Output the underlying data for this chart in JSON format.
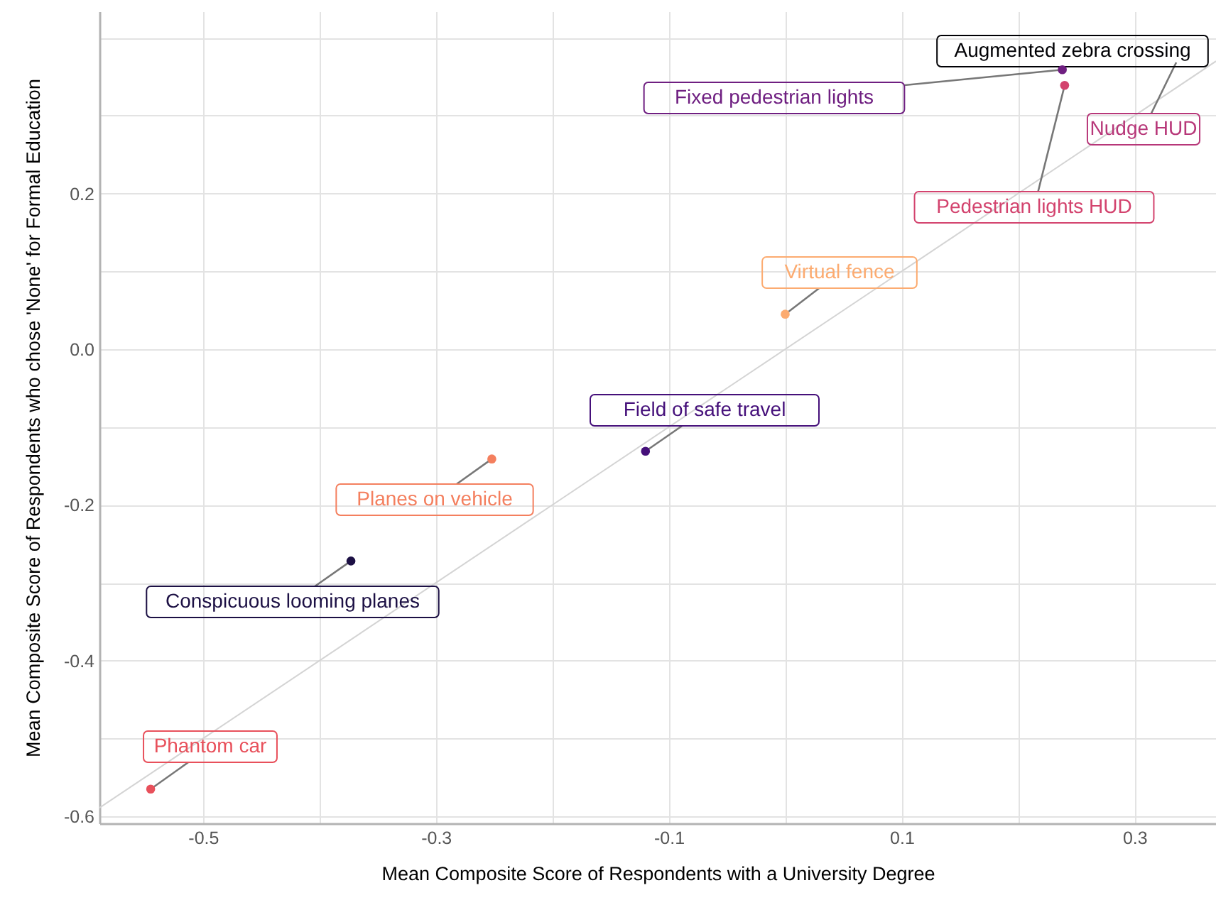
{
  "chart_data": {
    "type": "scatter",
    "xlabel": "Mean Composite Score of Respondents with a University Degree",
    "ylabel": "Mean Composite Score of Respondents who chose 'None' for Formal Education",
    "xlim": [
      -0.589,
      0.37
    ],
    "ylim": [
      -0.609,
      0.434
    ],
    "xticks": [
      -0.5,
      {
        "value": -0.4,
        "label": null
      },
      -0.3,
      {
        "value": -0.2,
        "label": null
      },
      -0.1,
      {
        "value": 0,
        "label": null
      },
      0.1,
      {
        "value": 0.2,
        "label": null
      },
      0.3
    ],
    "yticks": [
      {
        "value": -0.6,
        "label": "-0.6"
      },
      {
        "value": -0.5,
        "label": null
      },
      -0.4,
      {
        "value": -0.3,
        "label": null
      },
      -0.2,
      {
        "value": -0.1,
        "label": null
      },
      {
        "value": 0,
        "label": "0.0"
      },
      {
        "value": 0.1,
        "label": null
      },
      0.2,
      {
        "value": 0.3,
        "label": null
      },
      {
        "value": 0.4,
        "label": null
      }
    ],
    "grid": true,
    "marker": "circle",
    "series": [
      {
        "type": "line",
        "marker": "none",
        "color": "#d4d4d4",
        "x": [
          -0.589,
          0.37
        ],
        "values": [
          -0.589,
          0.37
        ]
      },
      {
        "name": "Augmented zebra crossing",
        "color": "#000004",
        "x": [
          null
        ],
        "values": [
          null
        ]
      },
      {
        "name": "Fixed pedestrian lights",
        "color": "#6f1f81",
        "x": [
          0.238
        ],
        "values": [
          0.359
        ]
      },
      {
        "name": "Nudge HUD",
        "color": "#b73779",
        "x": [
          null
        ],
        "values": [
          null
        ]
      },
      {
        "name": "Pedestrian lights HUD",
        "color": "#d3436e",
        "x": [
          0.24
        ],
        "values": [
          0.339
        ]
      },
      {
        "name": "Virtual fence",
        "color": "#fcab70",
        "x": [
          0.0
        ],
        "values": [
          0.045
        ]
      },
      {
        "name": "Field of safe travel",
        "color": "#45107a",
        "x": [
          -0.12
        ],
        "values": [
          -0.131
        ]
      },
      {
        "name": "Planes on vehicle",
        "color": "#f47f5e",
        "x": [
          -0.252
        ],
        "values": [
          -0.141
        ]
      },
      {
        "name": "Conspicuous looming planes",
        "color": "#1c1044",
        "x": [
          -0.373
        ],
        "values": [
          -0.272
        ]
      },
      {
        "name": "Phantom car",
        "color": "#e8505b",
        "x": [
          -0.545
        ],
        "values": [
          -0.565
        ]
      }
    ]
  }
}
